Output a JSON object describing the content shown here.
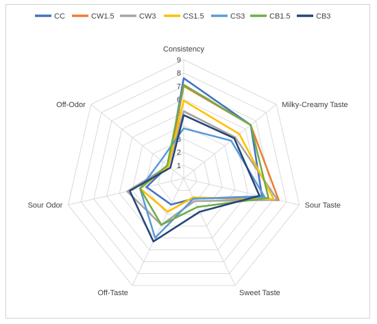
{
  "chart_data": {
    "type": "radar",
    "axes": [
      "Consistency",
      "Milky-Creamy Taste",
      "Sour Taste",
      "Sweet Taste",
      "Off-Taste",
      "Sour Odor",
      "Off-Odor"
    ],
    "rlim": [
      0,
      9
    ],
    "ticks": [
      "1",
      "2",
      "3",
      "4",
      "5",
      "6",
      "7",
      "8",
      "9"
    ],
    "grid": true,
    "legend_position": "top",
    "series": [
      {
        "name": "CC",
        "color": "#4472C4",
        "values": [
          7.6,
          6.5,
          6.1,
          1.7,
          2.2,
          2.9,
          1.5
        ]
      },
      {
        "name": "CW1.5",
        "color": "#ED7D31",
        "values": [
          7.0,
          6.5,
          7.4,
          1.6,
          2.8,
          3.4,
          1.5
        ]
      },
      {
        "name": "CW3",
        "color": "#A5A5A5",
        "values": [
          5.1,
          5.0,
          7.3,
          1.9,
          3.9,
          4.4,
          1.5
        ]
      },
      {
        "name": "CS1.5",
        "color": "#FFC000",
        "values": [
          5.9,
          5.4,
          7.0,
          1.6,
          2.8,
          3.4,
          1.5
        ]
      },
      {
        "name": "CS3",
        "color": "#5B9BD5",
        "values": [
          3.8,
          4.6,
          6.3,
          1.7,
          5.0,
          3.4,
          2.2
        ]
      },
      {
        "name": "CB1.5",
        "color": "#70AD47",
        "values": [
          7.1,
          6.5,
          6.6,
          2.4,
          3.9,
          3.4,
          1.6
        ]
      },
      {
        "name": "CB3",
        "color": "#264478",
        "values": [
          4.8,
          4.9,
          5.9,
          2.8,
          5.3,
          4.2,
          1.3
        ]
      }
    ]
  }
}
